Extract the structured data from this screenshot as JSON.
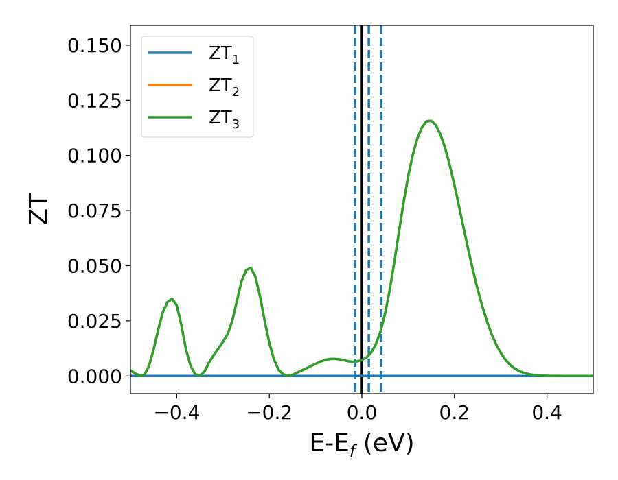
{
  "chart_data": {
    "type": "line",
    "xlabel": "E-E",
    "xlabel_sub": "f",
    "xlabel_unit": "(eV)",
    "ylabel": "ZT",
    "xlim": [
      -0.5,
      0.5
    ],
    "ylim": [
      -0.008,
      0.159
    ],
    "xticks": [
      -0.4,
      -0.2,
      0.0,
      0.2,
      0.4
    ],
    "xtick_labels": [
      "−0.4",
      "−0.2",
      "0.0",
      "0.2",
      "0.4"
    ],
    "yticks": [
      0.0,
      0.025,
      0.05,
      0.075,
      0.1,
      0.125,
      0.15
    ],
    "ytick_labels": [
      "0.000",
      "0.025",
      "0.050",
      "0.075",
      "0.100",
      "0.125",
      "0.150"
    ],
    "grid": false,
    "legend_position": "top-left",
    "vlines": [
      {
        "x": 0.0,
        "style": "solid",
        "color": "#000000"
      },
      {
        "x": -0.015,
        "style": "dashed",
        "color": "#1f77b4"
      },
      {
        "x": 0.015,
        "style": "dashed",
        "color": "#1f77b4"
      },
      {
        "x": 0.042,
        "style": "dashed",
        "color": "#1f77b4"
      }
    ],
    "series": [
      {
        "name": "ZT",
        "name_sub": "1",
        "color": "#1f77b4",
        "x": [
          -0.5,
          0.5
        ],
        "y": [
          0.0,
          0.0
        ]
      },
      {
        "name": "ZT",
        "name_sub": "2",
        "color": "#ff7f0e",
        "x": [
          -0.5,
          -0.49,
          -0.48,
          -0.47,
          -0.46,
          -0.45,
          -0.44,
          -0.43,
          -0.42,
          -0.41,
          -0.4,
          -0.39,
          -0.38,
          -0.37,
          -0.36,
          -0.35,
          -0.34,
          -0.33,
          -0.32,
          -0.31,
          -0.3,
          -0.29,
          -0.28,
          -0.27,
          -0.26,
          -0.25,
          -0.24,
          -0.23,
          -0.22,
          -0.21,
          -0.2,
          -0.19,
          -0.18,
          -0.17,
          -0.16,
          -0.15,
          -0.14,
          -0.13,
          -0.12,
          -0.11,
          -0.1,
          -0.09,
          -0.08,
          -0.07,
          -0.06,
          -0.05,
          -0.04,
          -0.03,
          -0.02,
          -0.01,
          0.0,
          0.01,
          0.02,
          0.03,
          0.04,
          0.05,
          0.06,
          0.07,
          0.08,
          0.09,
          0.1,
          0.11,
          0.12,
          0.13,
          0.14,
          0.15,
          0.16,
          0.17,
          0.18,
          0.19,
          0.2,
          0.21,
          0.22,
          0.23,
          0.24,
          0.25,
          0.26,
          0.27,
          0.28,
          0.29,
          0.3,
          0.31,
          0.32,
          0.33,
          0.34,
          0.35,
          0.36,
          0.37,
          0.38,
          0.39,
          0.4,
          0.42,
          0.44,
          0.46,
          0.48,
          0.5
        ],
        "y": [
          0.0025,
          0.0012,
          0.0002,
          0.0005,
          0.0045,
          0.012,
          0.021,
          0.029,
          0.0335,
          0.035,
          0.032,
          0.023,
          0.012,
          0.0045,
          0.0008,
          0.0001,
          0.002,
          0.0062,
          0.0095,
          0.0125,
          0.0155,
          0.019,
          0.025,
          0.034,
          0.043,
          0.048,
          0.049,
          0.045,
          0.036,
          0.025,
          0.015,
          0.0075,
          0.0028,
          0.0008,
          0.0001,
          0.0005,
          0.0015,
          0.0025,
          0.0035,
          0.0045,
          0.0055,
          0.0065,
          0.0072,
          0.0077,
          0.0078,
          0.0076,
          0.0072,
          0.0067,
          0.0064,
          0.0066,
          0.0072,
          0.0084,
          0.0106,
          0.0143,
          0.02,
          0.0282,
          0.0388,
          0.0515,
          0.0652,
          0.0786,
          0.0905,
          0.1004,
          0.1078,
          0.1128,
          0.1155,
          0.1157,
          0.1137,
          0.1094,
          0.1033,
          0.0955,
          0.0866,
          0.0769,
          0.067,
          0.0572,
          0.048,
          0.0394,
          0.0318,
          0.025,
          0.0192,
          0.0144,
          0.0105,
          0.0074,
          0.0051,
          0.0034,
          0.0022,
          0.0014,
          0.0009,
          0.0005,
          0.0003,
          0.0002,
          0.0001,
          5e-05,
          2e-05,
          1e-05,
          0.0,
          0.0
        ]
      },
      {
        "name": "ZT",
        "name_sub": "3",
        "color": "#2ca02c",
        "x": [
          -0.5,
          -0.49,
          -0.48,
          -0.47,
          -0.46,
          -0.45,
          -0.44,
          -0.43,
          -0.42,
          -0.41,
          -0.4,
          -0.39,
          -0.38,
          -0.37,
          -0.36,
          -0.35,
          -0.34,
          -0.33,
          -0.32,
          -0.31,
          -0.3,
          -0.29,
          -0.28,
          -0.27,
          -0.26,
          -0.25,
          -0.24,
          -0.23,
          -0.22,
          -0.21,
          -0.2,
          -0.19,
          -0.18,
          -0.17,
          -0.16,
          -0.15,
          -0.14,
          -0.13,
          -0.12,
          -0.11,
          -0.1,
          -0.09,
          -0.08,
          -0.07,
          -0.06,
          -0.05,
          -0.04,
          -0.03,
          -0.02,
          -0.01,
          0.0,
          0.01,
          0.02,
          0.03,
          0.04,
          0.05,
          0.06,
          0.07,
          0.08,
          0.09,
          0.1,
          0.11,
          0.12,
          0.13,
          0.14,
          0.15,
          0.16,
          0.17,
          0.18,
          0.19,
          0.2,
          0.21,
          0.22,
          0.23,
          0.24,
          0.25,
          0.26,
          0.27,
          0.28,
          0.29,
          0.3,
          0.31,
          0.32,
          0.33,
          0.34,
          0.35,
          0.36,
          0.37,
          0.38,
          0.39,
          0.4,
          0.42,
          0.44,
          0.46,
          0.48,
          0.5
        ],
        "y": [
          0.0025,
          0.0012,
          0.0002,
          0.0005,
          0.0045,
          0.012,
          0.021,
          0.029,
          0.0335,
          0.035,
          0.032,
          0.023,
          0.012,
          0.0045,
          0.0008,
          0.0001,
          0.002,
          0.0062,
          0.0095,
          0.0125,
          0.0155,
          0.019,
          0.025,
          0.034,
          0.043,
          0.048,
          0.049,
          0.045,
          0.036,
          0.025,
          0.015,
          0.0075,
          0.0028,
          0.0008,
          0.0001,
          0.0005,
          0.0015,
          0.0025,
          0.0035,
          0.0045,
          0.0055,
          0.0065,
          0.0072,
          0.0077,
          0.0078,
          0.0076,
          0.0072,
          0.0067,
          0.0064,
          0.0066,
          0.0072,
          0.0084,
          0.0106,
          0.0143,
          0.02,
          0.0282,
          0.0388,
          0.0515,
          0.0652,
          0.0786,
          0.0905,
          0.1004,
          0.1078,
          0.1128,
          0.1155,
          0.1157,
          0.1137,
          0.1094,
          0.1033,
          0.0955,
          0.0866,
          0.0769,
          0.067,
          0.0572,
          0.048,
          0.0394,
          0.0318,
          0.025,
          0.0192,
          0.0144,
          0.0105,
          0.0074,
          0.0051,
          0.0034,
          0.0022,
          0.0014,
          0.0009,
          0.0005,
          0.0003,
          0.0002,
          0.0001,
          5e-05,
          2e-05,
          1e-05,
          0.0,
          0.0
        ]
      }
    ]
  }
}
